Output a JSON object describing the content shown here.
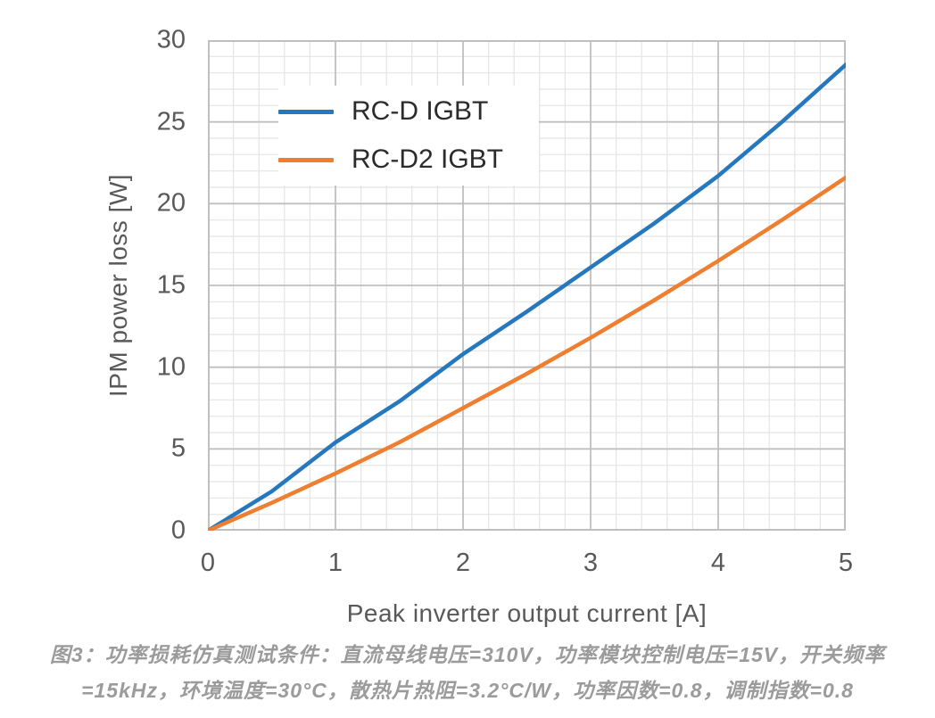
{
  "chart_data": {
    "type": "line",
    "x": [
      0,
      0.5,
      1,
      1.5,
      2,
      2.5,
      3,
      3.5,
      4,
      4.5,
      5
    ],
    "series": [
      {
        "name": "RC-D IGBT",
        "color": "#2577be",
        "values": [
          0,
          2.4,
          5.4,
          7.9,
          10.8,
          13.4,
          16.1,
          18.8,
          21.7,
          25.0,
          28.5
        ]
      },
      {
        "name": "RC-D2 IGBT",
        "color": "#ee7e30",
        "values": [
          0,
          1.7,
          3.5,
          5.4,
          7.5,
          9.6,
          11.8,
          14.1,
          16.5,
          19.0,
          21.6
        ]
      }
    ],
    "title": "",
    "xlabel": "Peak inverter output current [A]",
    "ylabel": "IPM power loss [W]",
    "xlim": [
      0,
      5
    ],
    "ylim": [
      0,
      30
    ],
    "x_ticks": [
      "0",
      "1",
      "2",
      "3",
      "4",
      "5"
    ],
    "y_ticks": [
      "0",
      "5",
      "10",
      "15",
      "20",
      "25",
      "30"
    ],
    "x_minor_step": 0.2,
    "y_minor_step": 1,
    "grid": "major-and-minor",
    "legend_position": "inside-top-left",
    "colors": {
      "major_grid": "#bfbfbf",
      "minor_grid": "#e4e4e4",
      "plot_border": "#bfbfbf",
      "tick_text": "#595959",
      "axis_title_text": "#595959",
      "legend_text": "#2b2b2b",
      "caption_text": "#9b9b9b"
    }
  },
  "caption": {
    "line1": "图3：功率损耗仿真测试条件：直流母线电压=310V，功率模块控制电压=15V，开关频率",
    "line2": "=15kHz，环境温度=30°C，散热片热阻=3.2°C/W，功率因数=0.8，调制指数=0.8"
  }
}
